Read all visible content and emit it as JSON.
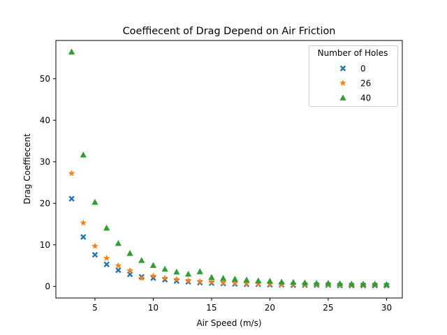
{
  "chart_data": {
    "type": "scatter",
    "title": "Coeffiecent of Drag Depend on Air Friction",
    "xlabel": "Air Speed (m/s)",
    "ylabel": "Drag Coeffiecent",
    "xlim": [
      1.65,
      31.35
    ],
    "ylim": [
      -2.8,
      59.2
    ],
    "xticks": [
      5,
      10,
      15,
      20,
      25,
      30
    ],
    "yticks": [
      0,
      10,
      20,
      30,
      40,
      50
    ],
    "grid": false,
    "legend": {
      "title": "Number of Holes",
      "placement": "top-right"
    },
    "x": [
      3,
      4,
      5,
      6,
      7,
      8,
      9,
      10,
      11,
      12,
      13,
      14,
      15,
      16,
      17,
      18,
      19,
      20,
      21,
      22,
      23,
      24,
      25,
      26,
      27,
      28,
      29,
      30
    ],
    "series": [
      {
        "name": "0",
        "marker": "x-filled",
        "color": "#1f77b4",
        "values": [
          21.1,
          11.9,
          7.6,
          5.3,
          3.9,
          2.9,
          2.3,
          2.0,
          1.6,
          1.3,
          1.1,
          0.9,
          0.8,
          0.7,
          0.6,
          0.5,
          0.5,
          0.4,
          0.4,
          0.3,
          0.3,
          0.3,
          0.3,
          0.2,
          0.2,
          0.2,
          0.2,
          0.2
        ]
      },
      {
        "name": "26",
        "marker": "star",
        "color": "#ff7f0e",
        "values": [
          27.2,
          15.3,
          9.7,
          6.8,
          5.0,
          3.8,
          2.0,
          2.5,
          2.0,
          1.7,
          1.4,
          1.2,
          1.1,
          0.9,
          0.8,
          0.7,
          0.6,
          0.6,
          0.5,
          0.5,
          0.4,
          0.4,
          0.4,
          0.3,
          0.3,
          0.3,
          0.3,
          0.3
        ]
      },
      {
        "name": "40",
        "marker": "triangle",
        "color": "#2ca02c",
        "values": [
          56.5,
          31.7,
          20.3,
          14.1,
          10.4,
          8.0,
          6.3,
          5.1,
          4.2,
          3.5,
          3.0,
          3.6,
          2.2,
          2.0,
          1.8,
          1.6,
          1.4,
          1.3,
          1.1,
          1.0,
          0.9,
          0.8,
          0.8,
          0.7,
          0.6,
          0.6,
          0.6,
          0.5
        ]
      }
    ]
  }
}
